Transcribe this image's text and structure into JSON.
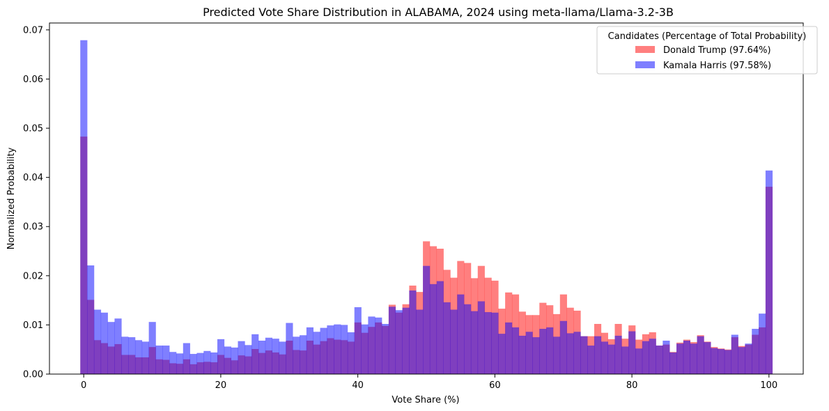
{
  "chart_data": {
    "type": "histogram",
    "title": "Predicted Vote Share Distribution in ALABAMA, 2024 using meta-llama/Llama-3.2-3B",
    "xlabel": "Vote Share (%)",
    "ylabel": "Normalized Probability",
    "xlim": [
      -5,
      105
    ],
    "ylim": [
      0,
      0.0714
    ],
    "xticks": [
      0,
      20,
      40,
      60,
      80,
      100
    ],
    "yticks": [
      "0.00",
      "0.01",
      "0.02",
      "0.03",
      "0.04",
      "0.05",
      "0.06",
      "0.07"
    ],
    "bin_start": -0.5,
    "bin_width": 1,
    "legend_title": "Candidates (Percentage of Total Probability)",
    "legend_position": "top-right",
    "series": [
      {
        "name": "Donald Trump (97.64%)",
        "color": "#ff0000",
        "alpha": 0.5,
        "values": [
          0.0483,
          0.0151,
          0.0069,
          0.0063,
          0.0056,
          0.0061,
          0.0039,
          0.0039,
          0.0034,
          0.0034,
          0.0055,
          0.003,
          0.0029,
          0.0022,
          0.0021,
          0.003,
          0.002,
          0.0024,
          0.0025,
          0.0024,
          0.0039,
          0.0033,
          0.0028,
          0.0038,
          0.0036,
          0.0051,
          0.0043,
          0.0048,
          0.0044,
          0.004,
          0.0068,
          0.0049,
          0.0048,
          0.0068,
          0.006,
          0.0067,
          0.0073,
          0.007,
          0.0069,
          0.0066,
          0.0105,
          0.0084,
          0.0096,
          0.0105,
          0.0098,
          0.0141,
          0.0125,
          0.0142,
          0.018,
          0.0167,
          0.027,
          0.026,
          0.0255,
          0.0212,
          0.0196,
          0.023,
          0.0226,
          0.0195,
          0.022,
          0.0196,
          0.019,
          0.0133,
          0.0166,
          0.0162,
          0.0127,
          0.012,
          0.012,
          0.0145,
          0.014,
          0.0122,
          0.0162,
          0.0135,
          0.0129,
          0.0077,
          0.0077,
          0.0102,
          0.0084,
          0.0071,
          0.0102,
          0.0072,
          0.0099,
          0.007,
          0.0081,
          0.0085,
          0.0058,
          0.006,
          0.0045,
          0.0064,
          0.007,
          0.0065,
          0.0079,
          0.0066,
          0.0055,
          0.0052,
          0.005,
          0.0075,
          0.0057,
          0.006,
          0.008,
          0.0095,
          0.0381
        ],
        "overlap_values": [
          0.0483,
          0.0151,
          0.0069,
          0.0063,
          0.0056,
          0.0061,
          0.0039,
          0.0039,
          0.0034,
          0.0034,
          0.0055,
          0.003,
          0.0029,
          0.0022,
          0.0021,
          0.003,
          0.002,
          0.0024,
          0.0025,
          0.0024,
          0.0039,
          0.0033,
          0.0028,
          0.0038,
          0.0036,
          0.0051,
          0.0043,
          0.0048,
          0.0044,
          0.004,
          0.0068,
          0.0049,
          0.0048,
          0.0068,
          0.006,
          0.0067,
          0.0073,
          0.007,
          0.0069,
          0.0066,
          0.0105,
          0.0084,
          0.0096,
          0.0105,
          0.0098,
          0.0137,
          0.0125,
          0.0135,
          0.017,
          0.0131,
          0.022,
          0.0183,
          0.0189,
          0.0146,
          0.0131,
          0.0162,
          0.0142,
          0.0128,
          0.0148,
          0.0126,
          0.0125,
          0.0082,
          0.0105,
          0.0095,
          0.0078,
          0.0086,
          0.0075,
          0.0092,
          0.0095,
          0.0076,
          0.0108,
          0.0083,
          0.0086,
          0.0077,
          0.0058,
          0.0077,
          0.0066,
          0.006,
          0.0078,
          0.0056,
          0.0087,
          0.0052,
          0.0067,
          0.0072,
          0.0058,
          0.0068,
          0.0044,
          0.0062,
          0.0068,
          0.0062,
          0.0077,
          0.0065,
          0.0053,
          0.0051,
          0.0049,
          0.007,
          0.0055,
          0.0055,
          0.0076,
          0.0095,
          0.0381
        ]
      },
      {
        "name": "Kamala Harris (97.58%)",
        "color": "#0000ff",
        "alpha": 0.5,
        "values": [
          0.0679,
          0.0221,
          0.0131,
          0.0125,
          0.0106,
          0.0113,
          0.0076,
          0.0075,
          0.0069,
          0.0066,
          0.0106,
          0.0058,
          0.0058,
          0.0045,
          0.0042,
          0.0063,
          0.0041,
          0.0043,
          0.0047,
          0.0044,
          0.0071,
          0.0056,
          0.0054,
          0.0067,
          0.0059,
          0.0081,
          0.0068,
          0.0074,
          0.0072,
          0.0066,
          0.0104,
          0.0076,
          0.0079,
          0.0095,
          0.0086,
          0.0094,
          0.0099,
          0.0101,
          0.01,
          0.0085,
          0.0136,
          0.0101,
          0.0117,
          0.0115,
          0.0102,
          0.0137,
          0.013,
          0.0135,
          0.017,
          0.0131,
          0.022,
          0.0183,
          0.0189,
          0.0146,
          0.0131,
          0.0162,
          0.0142,
          0.0128,
          0.0148,
          0.0126,
          0.0125,
          0.0082,
          0.0105,
          0.0095,
          0.0078,
          0.0086,
          0.0075,
          0.0092,
          0.0095,
          0.0076,
          0.0108,
          0.0083,
          0.0086,
          0.0077,
          0.0058,
          0.0077,
          0.0066,
          0.006,
          0.0078,
          0.0056,
          0.0087,
          0.0052,
          0.0067,
          0.0072,
          0.0058,
          0.0068,
          0.0044,
          0.0062,
          0.0068,
          0.0062,
          0.0077,
          0.0065,
          0.0053,
          0.0051,
          0.0049,
          0.008,
          0.0055,
          0.0062,
          0.0092,
          0.0123,
          0.0414
        ]
      }
    ]
  }
}
